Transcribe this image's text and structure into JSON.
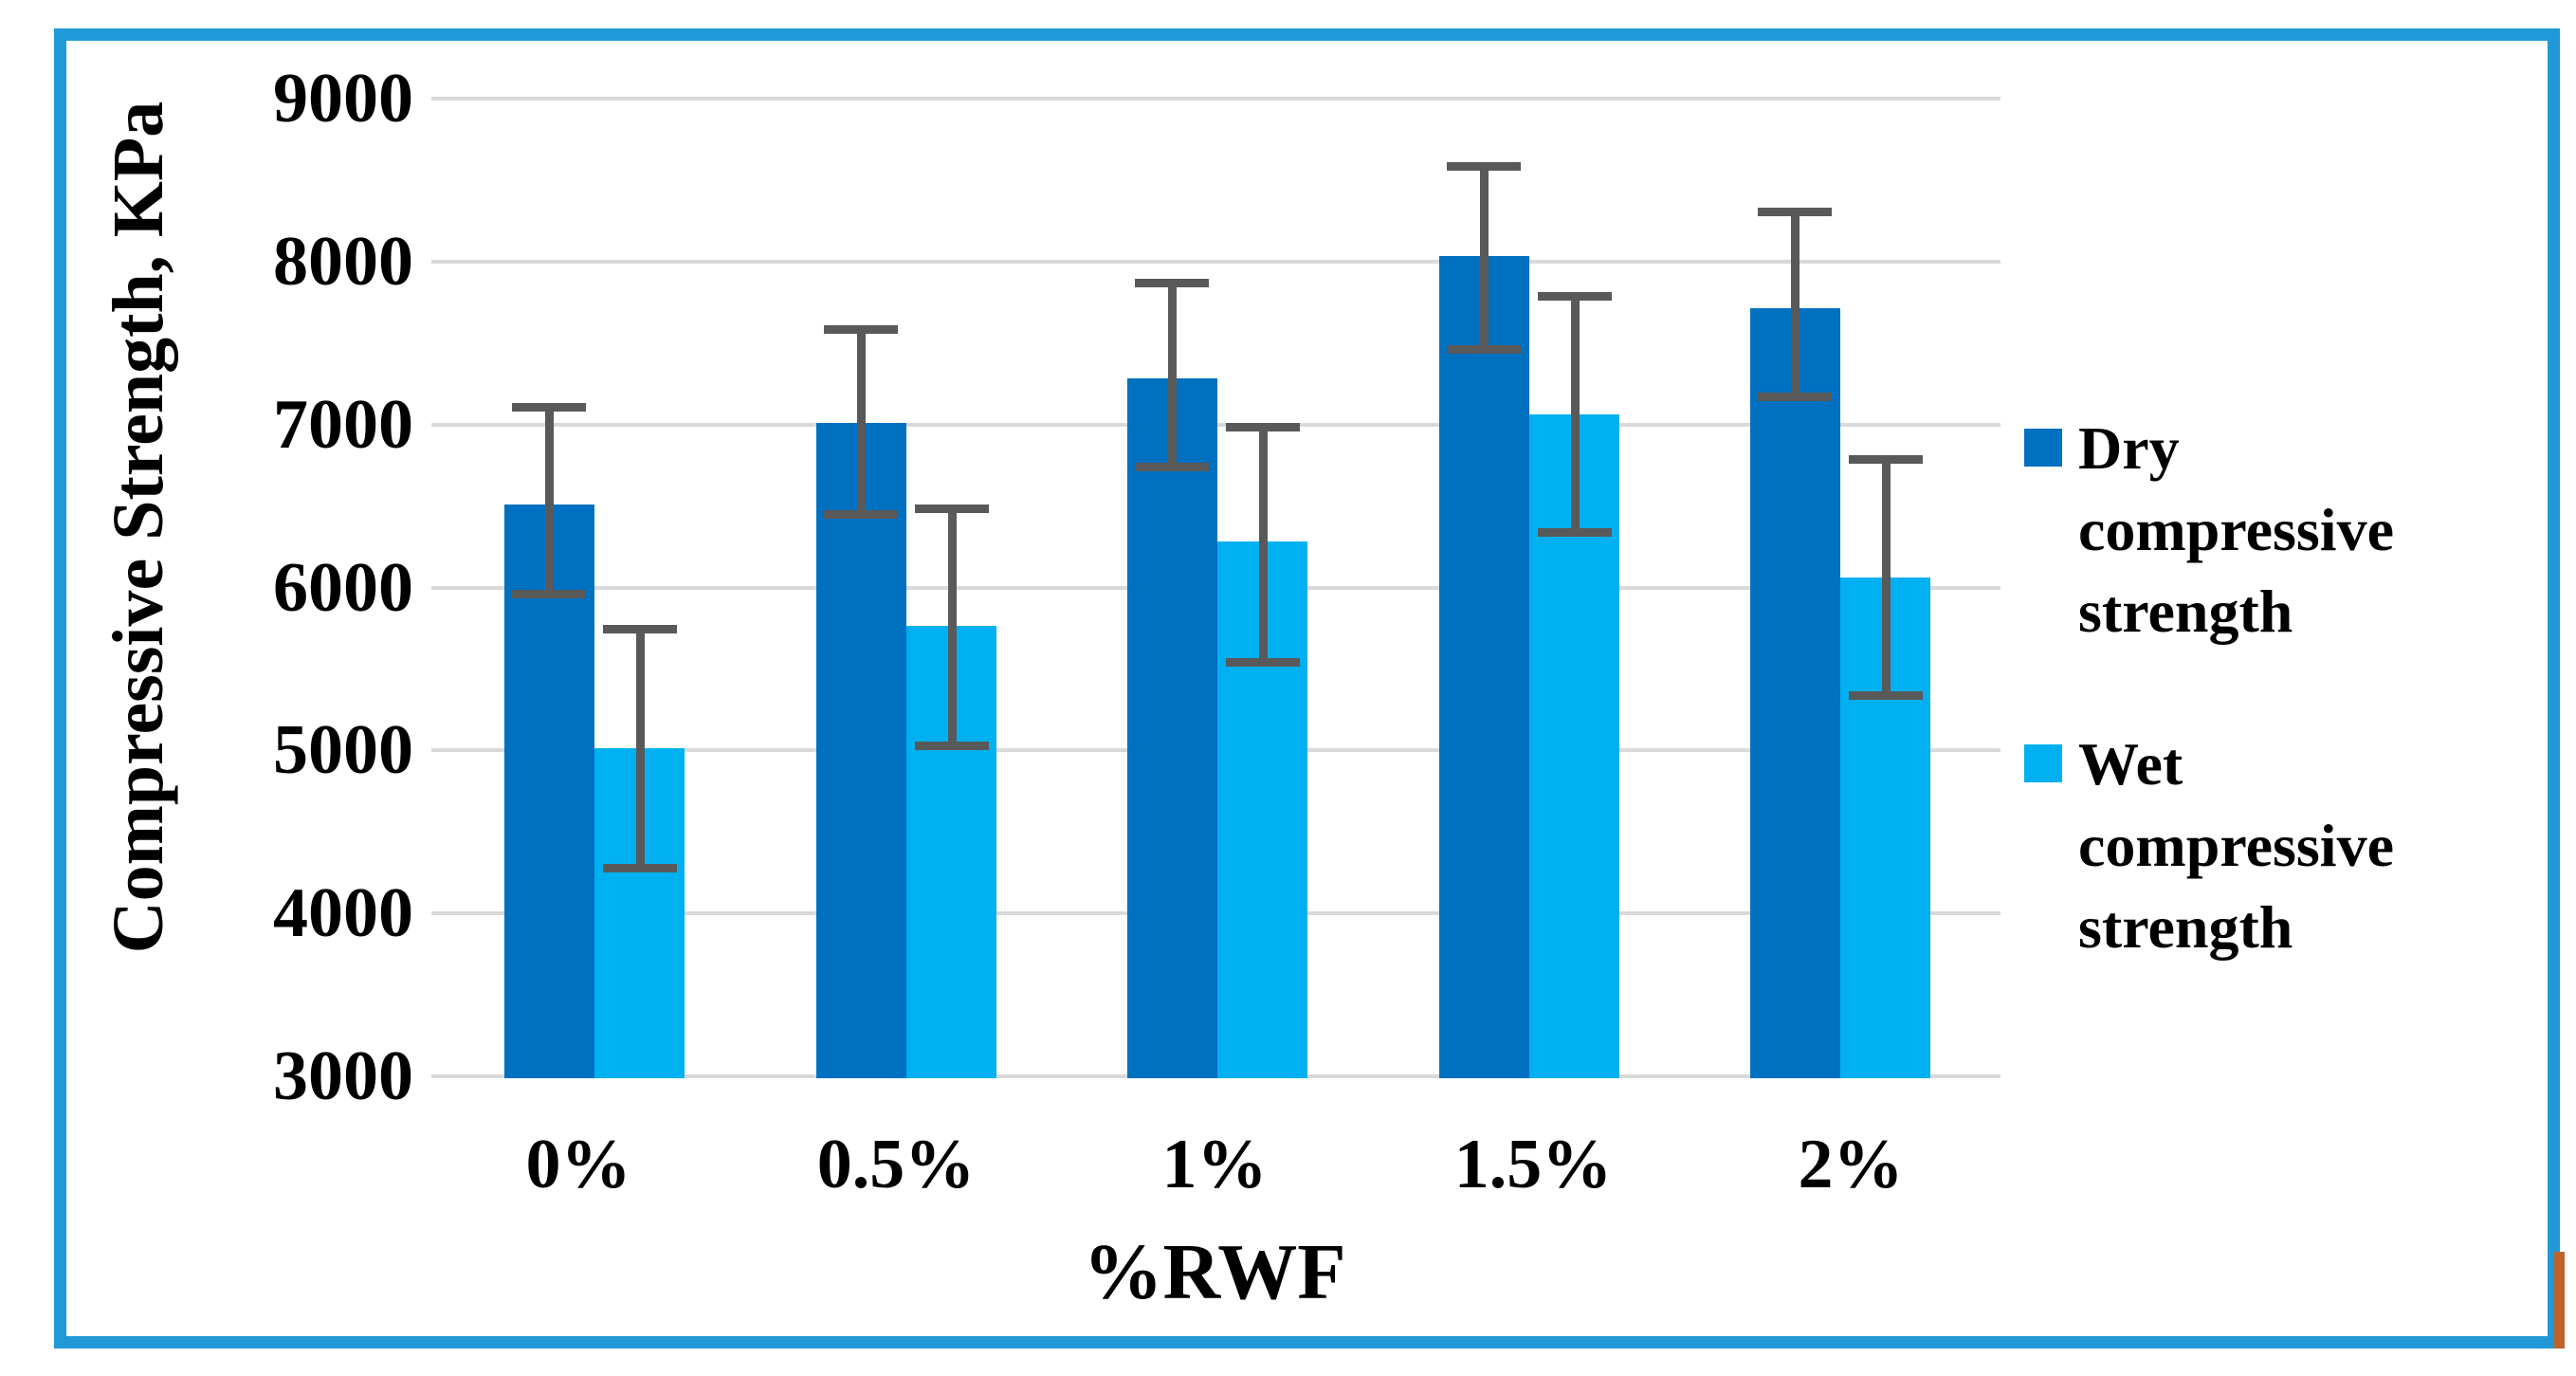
{
  "figure": {
    "border_color": "#2199D8",
    "artifact_color": "#C0622C",
    "background": "#ffffff"
  },
  "chart_data": {
    "type": "bar",
    "title": "",
    "xlabel": "%RWF",
    "ylabel": "Compressive Strength, KPa",
    "categories": [
      "0%",
      "0.5%",
      "1%",
      "1.5%",
      "2%"
    ],
    "series": [
      {
        "name": "Dry compressive strength",
        "color": "#0070C0",
        "values": [
          6500,
          7000,
          7270,
          8020,
          7700
        ],
        "error_low": [
          5920,
          6410,
          6700,
          7420,
          7130
        ],
        "error_high": [
          7120,
          7600,
          7880,
          8600,
          8320
        ]
      },
      {
        "name": "Wet compressive strength",
        "color": "#00B0F0",
        "values": [
          5000,
          5750,
          6270,
          7050,
          6050
        ],
        "error_low": [
          4240,
          4990,
          5500,
          6300,
          5300
        ],
        "error_high": [
          5760,
          6500,
          7000,
          7800,
          6800
        ]
      }
    ],
    "ylim": [
      3000,
      9000
    ],
    "ytick_step": 1000,
    "yticks": [
      "9000",
      "8000",
      "7000",
      "6000",
      "5000",
      "4000",
      "3000"
    ],
    "grid": true,
    "gridline_color": "#D9D9D9",
    "error_bar_color": "#595959",
    "legend_position": "right"
  }
}
